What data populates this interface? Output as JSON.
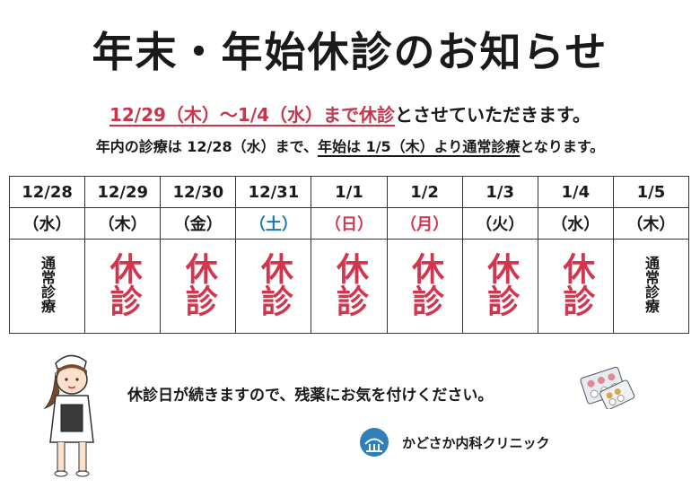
{
  "title": "年末・年始休診のお知らせ",
  "line1": {
    "highlight": "12/29（木）〜1/4（水）まで休診",
    "rest": "とさせていただきます。"
  },
  "line2": {
    "part1": "年内の診療は 12/28（水）まで、",
    "highlight": "年始は 1/5（木）より通常診療",
    "part3": "となります。"
  },
  "schedule": [
    {
      "date": "12/28",
      "day": "（水）",
      "status": "通常診療",
      "type": "open"
    },
    {
      "date": "12/29",
      "day": "（木）",
      "status": "休診",
      "type": "closed"
    },
    {
      "date": "12/30",
      "day": "（金）",
      "status": "休診",
      "type": "closed"
    },
    {
      "date": "12/31",
      "day": "（土）",
      "status": "休診",
      "type": "closed",
      "day_color": "blue"
    },
    {
      "date": "1/1",
      "day": "（日）",
      "status": "休診",
      "type": "closed",
      "day_color": "red"
    },
    {
      "date": "1/2",
      "day": "（月）",
      "status": "休診",
      "type": "closed",
      "day_color": "red"
    },
    {
      "date": "1/3",
      "day": "（火）",
      "status": "休診",
      "type": "closed"
    },
    {
      "date": "1/4",
      "day": "（水）",
      "status": "休診",
      "type": "closed"
    },
    {
      "date": "1/5",
      "day": "（木）",
      "status": "通常診療",
      "type": "open"
    }
  ],
  "notice": "休診日が続きますので、残薬にお気を付けください。",
  "clinic_name": "かどさか内科クリニック",
  "colors": {
    "accent_red": "#d1364f",
    "saturday_blue": "#1a77b5",
    "text": "#1a1a1a"
  },
  "icons": {
    "logo": "clinic-logo-icon",
    "nurse": "nurse-illustration",
    "pills": "pill-pack-illustration"
  }
}
